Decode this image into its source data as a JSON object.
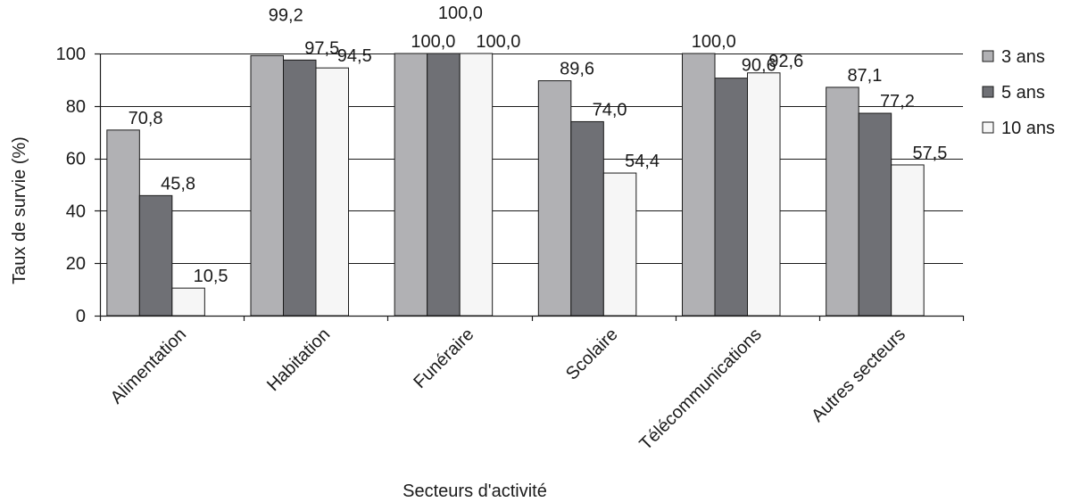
{
  "chart_data": {
    "type": "bar",
    "title": "",
    "xlabel": "Secteurs d'activité",
    "ylabel": "Taux de survie (%)",
    "ylim": [
      0,
      100
    ],
    "yticks": [
      0,
      20,
      40,
      60,
      80,
      100
    ],
    "grid": true,
    "legend_position": "right",
    "categories": [
      "Alimentation",
      "Habitation",
      "Funéraire",
      "Scolaire",
      "Télécommunications",
      "Autres secteurs"
    ],
    "series": [
      {
        "name": "3 ans",
        "color": "#b1b1b4",
        "values": [
          70.8,
          99.2,
          100.0,
          89.6,
          100.0,
          87.1
        ],
        "labels": [
          "70,8",
          "99,2",
          "100,0",
          "89,6",
          "100,0",
          "87,1"
        ]
      },
      {
        "name": "5 ans",
        "color": "#6f7075",
        "values": [
          45.8,
          97.5,
          100.0,
          74.0,
          90.6,
          77.2
        ],
        "labels": [
          "45,8",
          "97,5",
          "100,0",
          "74,0",
          "90,6",
          "77,2"
        ]
      },
      {
        "name": "10 ans",
        "color": "#f6f6f6",
        "values": [
          10.5,
          94.5,
          100.0,
          54.4,
          92.6,
          57.5
        ],
        "labels": [
          "10,5",
          "94,5",
          "100,0",
          "54,4",
          "92,6",
          "57,5"
        ]
      }
    ]
  }
}
